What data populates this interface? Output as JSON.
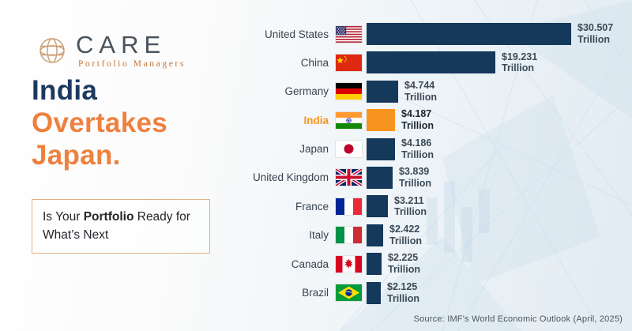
{
  "brand": {
    "name": "CARE",
    "tagline": "Portfolio Managers"
  },
  "headline": {
    "line1": "India",
    "line2": "Overtakes",
    "line3": "Japan."
  },
  "tagline_box": {
    "prefix": "Is Your ",
    "bold": "Portfolio",
    "suffix": " Ready for What’s Next"
  },
  "source": "Source: IMF's World Economic Outlook (April, 2025)",
  "colors": {
    "bar_navy": "#14395b",
    "bar_highlight_orange": "#f7941d",
    "headline_navy": "#1c3a5e",
    "headline_orange": "#ee8140",
    "logo_orange": "#c0763c",
    "box_border": "#e0b285"
  },
  "chart_data": {
    "type": "bar",
    "orientation": "horizontal",
    "title": "",
    "unit": "Trillion",
    "xlim": [
      0,
      30.507
    ],
    "grid": false,
    "legend": "none",
    "categories": [
      "United States",
      "China",
      "Germany",
      "India",
      "Japan",
      "United Kingdom",
      "France",
      "Italy",
      "Canada",
      "Brazil"
    ],
    "values": [
      30.507,
      19.231,
      4.744,
      4.187,
      4.186,
      3.839,
      3.211,
      2.422,
      2.225,
      2.125
    ],
    "rows": [
      {
        "country": "United States",
        "value": 30.507,
        "amount": "$30.507",
        "flag": "us",
        "highlight": false
      },
      {
        "country": "China",
        "value": 19.231,
        "amount": "$19.231",
        "flag": "cn",
        "highlight": false
      },
      {
        "country": "Germany",
        "value": 4.744,
        "amount": "$4.744",
        "flag": "de",
        "highlight": false
      },
      {
        "country": "India",
        "value": 4.187,
        "amount": "$4.187",
        "flag": "in",
        "highlight": true
      },
      {
        "country": "Japan",
        "value": 4.186,
        "amount": "$4.186",
        "flag": "jp",
        "highlight": false
      },
      {
        "country": "United Kingdom",
        "value": 3.839,
        "amount": "$3.839",
        "flag": "gb",
        "highlight": false
      },
      {
        "country": "France",
        "value": 3.211,
        "amount": "$3.211",
        "flag": "fr",
        "highlight": false
      },
      {
        "country": "Italy",
        "value": 2.422,
        "amount": "$2.422",
        "flag": "it",
        "highlight": false
      },
      {
        "country": "Canada",
        "value": 2.225,
        "amount": "$2.225",
        "flag": "ca",
        "highlight": false
      },
      {
        "country": "Brazil",
        "value": 2.125,
        "amount": "$2.125",
        "flag": "br",
        "highlight": false
      }
    ]
  }
}
